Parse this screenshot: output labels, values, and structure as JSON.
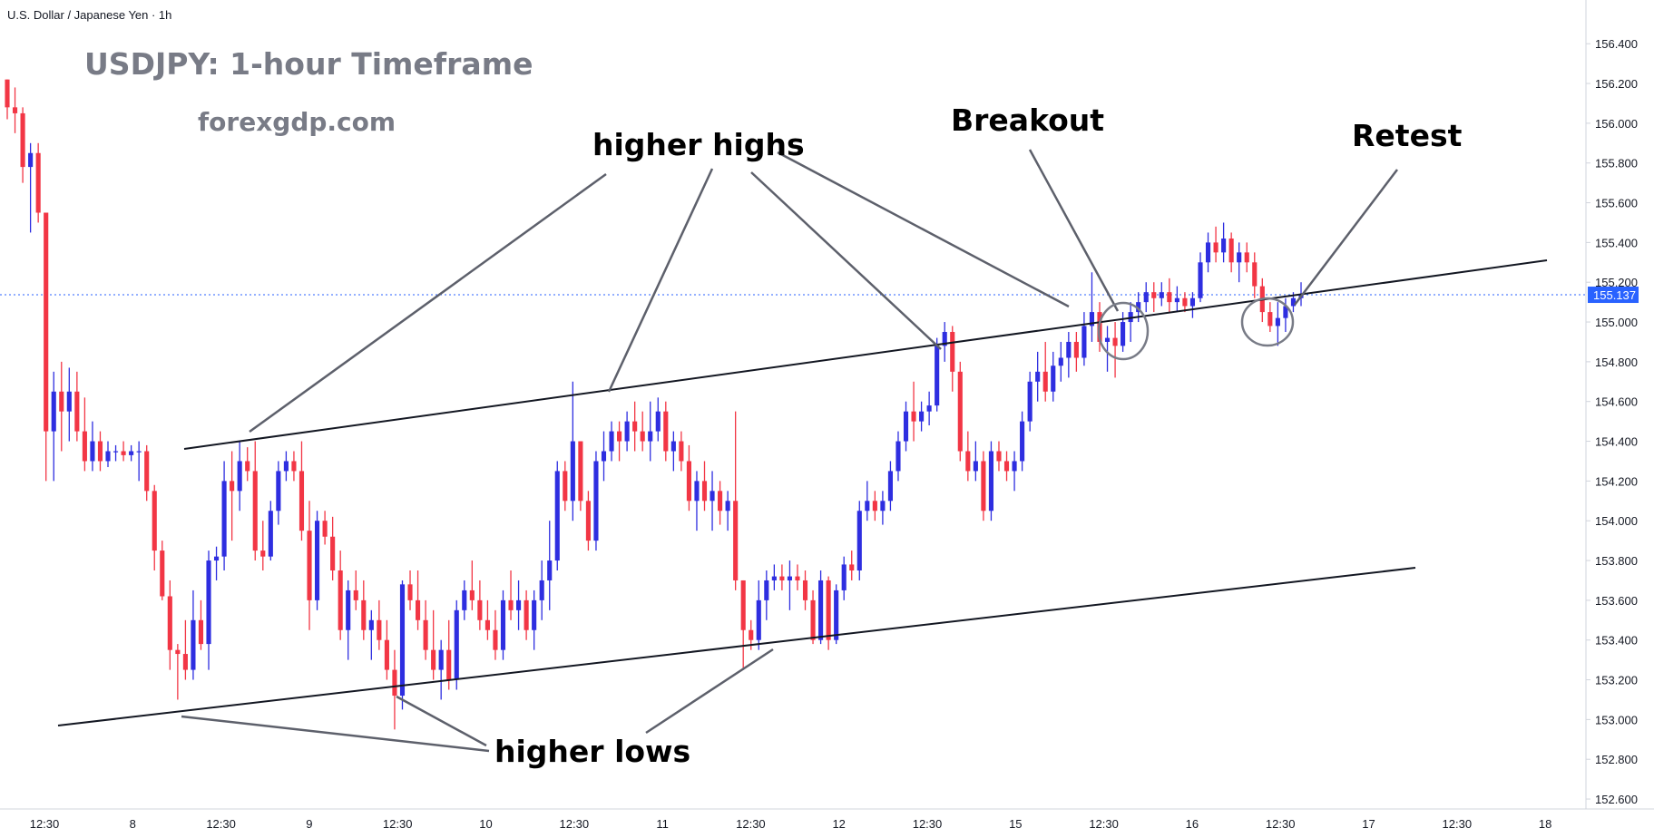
{
  "header": {
    "symbol_label": "U.S. Dollar / Japanese Yen · 1h"
  },
  "chart_data": {
    "type": "candlestick",
    "title": "USDJPY: 1-hour Timeframe",
    "watermark": "forexgdp.com",
    "y_axis": {
      "ticks": [
        "156.400",
        "156.200",
        "156.000",
        "155.800",
        "155.600",
        "155.400",
        "155.200",
        "155.000",
        "154.800",
        "154.600",
        "154.400",
        "154.200",
        "154.000",
        "153.800",
        "153.600",
        "153.400",
        "153.200",
        "153.000",
        "152.800",
        "152.600"
      ],
      "range": [
        152.55,
        156.62
      ]
    },
    "x_axis": {
      "ticks": [
        "12:30",
        "8",
        "12:30",
        "9",
        "12:30",
        "10",
        "12:30",
        "11",
        "12:30",
        "12",
        "12:30",
        "15",
        "12:30",
        "16",
        "12:30",
        "17",
        "12:30",
        "18"
      ]
    },
    "last_price": "155.137",
    "last_price_value": 155.137,
    "colors": {
      "up": "#2e2ee0",
      "down": "#f23645",
      "price_line": "#2962ff",
      "trendline": "#131722",
      "annotation_line": "#5d606b",
      "circle": "#787b86"
    },
    "ohlc": [
      [
        156.22,
        156.22,
        156.02,
        156.08
      ],
      [
        156.08,
        156.18,
        155.95,
        156.05
      ],
      [
        156.05,
        156.08,
        155.7,
        155.78
      ],
      [
        155.78,
        155.9,
        155.45,
        155.85
      ],
      [
        155.85,
        155.9,
        155.5,
        155.55
      ],
      [
        155.55,
        155.55,
        154.2,
        154.45
      ],
      [
        154.45,
        154.75,
        154.2,
        154.65
      ],
      [
        154.65,
        154.8,
        154.35,
        154.55
      ],
      [
        154.55,
        154.77,
        154.4,
        154.65
      ],
      [
        154.65,
        154.75,
        154.4,
        154.45
      ],
      [
        154.45,
        154.62,
        154.25,
        154.3
      ],
      [
        154.3,
        154.5,
        154.25,
        154.4
      ],
      [
        154.4,
        154.45,
        154.25,
        154.3
      ],
      [
        154.3,
        154.4,
        154.27,
        154.35
      ],
      [
        154.35,
        154.38,
        154.3,
        154.35
      ],
      [
        154.35,
        154.4,
        154.3,
        154.33
      ],
      [
        154.33,
        154.38,
        154.3,
        154.35
      ],
      [
        154.35,
        154.4,
        154.2,
        154.35
      ],
      [
        154.35,
        154.38,
        154.1,
        154.15
      ],
      [
        154.15,
        154.18,
        153.75,
        153.85
      ],
      [
        153.85,
        153.9,
        153.6,
        153.62
      ],
      [
        153.62,
        153.7,
        153.25,
        153.35
      ],
      [
        153.35,
        153.38,
        153.1,
        153.33
      ],
      [
        153.33,
        153.5,
        153.2,
        153.25
      ],
      [
        153.25,
        153.65,
        153.2,
        153.5
      ],
      [
        153.5,
        153.6,
        153.35,
        153.38
      ],
      [
        153.38,
        153.85,
        153.25,
        153.8
      ],
      [
        153.8,
        153.87,
        153.7,
        153.82
      ],
      [
        153.82,
        154.3,
        153.75,
        154.2
      ],
      [
        154.2,
        154.35,
        153.9,
        154.15
      ],
      [
        154.15,
        154.4,
        154.05,
        154.3
      ],
      [
        154.3,
        154.37,
        154.2,
        154.25
      ],
      [
        154.25,
        154.4,
        153.8,
        153.85
      ],
      [
        153.85,
        154.0,
        153.75,
        153.82
      ],
      [
        153.82,
        154.1,
        153.8,
        154.05
      ],
      [
        154.05,
        154.3,
        153.98,
        154.25
      ],
      [
        154.25,
        154.35,
        154.2,
        154.3
      ],
      [
        154.3,
        154.35,
        154.2,
        154.25
      ],
      [
        154.25,
        154.4,
        153.9,
        153.95
      ],
      [
        153.95,
        154.1,
        153.45,
        153.6
      ],
      [
        153.6,
        154.05,
        153.55,
        154.0
      ],
      [
        154.0,
        154.05,
        153.88,
        153.92
      ],
      [
        153.92,
        154.02,
        153.7,
        153.75
      ],
      [
        153.75,
        153.85,
        153.4,
        153.45
      ],
      [
        153.45,
        153.7,
        153.3,
        153.65
      ],
      [
        153.65,
        153.75,
        153.55,
        153.6
      ],
      [
        153.6,
        153.7,
        153.4,
        153.45
      ],
      [
        153.45,
        153.55,
        153.3,
        153.5
      ],
      [
        153.5,
        153.6,
        153.35,
        153.4
      ],
      [
        153.4,
        153.5,
        153.2,
        153.25
      ],
      [
        153.25,
        153.35,
        152.95,
        153.12
      ],
      [
        153.12,
        153.7,
        153.05,
        153.68
      ],
      [
        153.68,
        153.75,
        153.55,
        153.6
      ],
      [
        153.6,
        153.75,
        153.45,
        153.5
      ],
      [
        153.5,
        153.6,
        153.3,
        153.35
      ],
      [
        153.35,
        153.55,
        153.2,
        153.25
      ],
      [
        153.25,
        153.4,
        153.1,
        153.35
      ],
      [
        153.35,
        153.5,
        153.15,
        153.2
      ],
      [
        153.2,
        153.6,
        153.15,
        153.55
      ],
      [
        153.55,
        153.7,
        153.5,
        153.65
      ],
      [
        153.65,
        153.8,
        153.55,
        153.6
      ],
      [
        153.6,
        153.7,
        153.45,
        153.5
      ],
      [
        153.5,
        153.6,
        153.4,
        153.45
      ],
      [
        153.45,
        153.55,
        153.3,
        153.35
      ],
      [
        153.35,
        153.65,
        153.3,
        153.6
      ],
      [
        153.6,
        153.75,
        153.5,
        153.55
      ],
      [
        153.55,
        153.7,
        153.45,
        153.6
      ],
      [
        153.6,
        153.65,
        153.4,
        153.45
      ],
      [
        153.45,
        153.65,
        153.35,
        153.6
      ],
      [
        153.6,
        153.8,
        153.5,
        153.7
      ],
      [
        153.7,
        154.0,
        153.55,
        153.8
      ],
      [
        153.8,
        154.3,
        153.75,
        154.25
      ],
      [
        154.25,
        154.3,
        154.05,
        154.1
      ],
      [
        154.1,
        154.7,
        154.0,
        154.4
      ],
      [
        154.4,
        154.4,
        154.05,
        154.1
      ],
      [
        154.1,
        154.15,
        153.85,
        153.9
      ],
      [
        153.9,
        154.35,
        153.85,
        154.3
      ],
      [
        154.3,
        154.45,
        154.2,
        154.35
      ],
      [
        154.35,
        154.5,
        154.3,
        154.45
      ],
      [
        154.45,
        154.5,
        154.3,
        154.4
      ],
      [
        154.4,
        154.55,
        154.35,
        154.5
      ],
      [
        154.5,
        154.6,
        154.35,
        154.45
      ],
      [
        154.45,
        154.55,
        154.35,
        154.4
      ],
      [
        154.4,
        154.6,
        154.3,
        154.45
      ],
      [
        154.45,
        154.62,
        154.4,
        154.55
      ],
      [
        154.55,
        154.6,
        154.3,
        154.35
      ],
      [
        154.35,
        154.45,
        154.25,
        154.4
      ],
      [
        154.4,
        154.45,
        154.25,
        154.3
      ],
      [
        154.3,
        154.38,
        154.05,
        154.1
      ],
      [
        154.1,
        154.25,
        153.95,
        154.2
      ],
      [
        154.2,
        154.3,
        154.05,
        154.1
      ],
      [
        154.1,
        154.25,
        153.95,
        154.15
      ],
      [
        154.15,
        154.2,
        153.98,
        154.05
      ],
      [
        154.05,
        154.15,
        153.95,
        154.1
      ],
      [
        154.1,
        154.55,
        153.65,
        153.7
      ],
      [
        153.7,
        153.7,
        153.25,
        153.45
      ],
      [
        153.45,
        153.5,
        153.35,
        153.4
      ],
      [
        153.4,
        153.7,
        153.35,
        153.6
      ],
      [
        153.6,
        153.75,
        153.5,
        153.7
      ],
      [
        153.7,
        153.78,
        153.65,
        153.72
      ],
      [
        153.72,
        153.78,
        153.65,
        153.7
      ],
      [
        153.7,
        153.8,
        153.55,
        153.72
      ],
      [
        153.72,
        153.78,
        153.65,
        153.7
      ],
      [
        153.7,
        153.75,
        153.55,
        153.6
      ],
      [
        153.6,
        153.65,
        153.38,
        153.4
      ],
      [
        153.4,
        153.75,
        153.38,
        153.7
      ],
      [
        153.7,
        153.72,
        153.35,
        153.4
      ],
      [
        153.4,
        153.68,
        153.38,
        153.65
      ],
      [
        153.65,
        153.82,
        153.6,
        153.78
      ],
      [
        153.78,
        153.85,
        153.7,
        153.75
      ],
      [
        153.75,
        154.1,
        153.7,
        154.05
      ],
      [
        154.05,
        154.2,
        154.0,
        154.1
      ],
      [
        154.1,
        154.15,
        154.0,
        154.05
      ],
      [
        154.05,
        154.15,
        153.98,
        154.1
      ],
      [
        154.1,
        154.3,
        154.05,
        154.25
      ],
      [
        154.25,
        154.45,
        154.2,
        154.4
      ],
      [
        154.4,
        154.6,
        154.35,
        154.55
      ],
      [
        154.55,
        154.7,
        154.4,
        154.5
      ],
      [
        154.5,
        154.6,
        154.45,
        154.55
      ],
      [
        154.55,
        154.65,
        154.48,
        154.58
      ],
      [
        154.58,
        154.92,
        154.55,
        154.88
      ],
      [
        154.88,
        155.0,
        154.8,
        154.95
      ],
      [
        154.95,
        154.98,
        154.65,
        154.75
      ],
      [
        154.75,
        154.8,
        154.3,
        154.35
      ],
      [
        154.35,
        154.45,
        154.2,
        154.25
      ],
      [
        154.25,
        154.4,
        154.2,
        154.3
      ],
      [
        154.3,
        154.35,
        154.0,
        154.05
      ],
      [
        154.05,
        154.4,
        154.0,
        154.35
      ],
      [
        154.35,
        154.4,
        154.25,
        154.3
      ],
      [
        154.3,
        154.35,
        154.2,
        154.25
      ],
      [
        154.25,
        154.35,
        154.15,
        154.3
      ],
      [
        154.3,
        154.55,
        154.25,
        154.5
      ],
      [
        154.5,
        154.75,
        154.45,
        154.7
      ],
      [
        154.7,
        154.85,
        154.6,
        154.75
      ],
      [
        154.75,
        154.9,
        154.6,
        154.65
      ],
      [
        154.65,
        154.85,
        154.6,
        154.78
      ],
      [
        154.78,
        154.9,
        154.7,
        154.82
      ],
      [
        154.82,
        154.95,
        154.72,
        154.9
      ],
      [
        154.9,
        154.95,
        154.75,
        154.82
      ],
      [
        154.82,
        155.05,
        154.78,
        154.98
      ],
      [
        154.98,
        155.25,
        154.9,
        155.05
      ],
      [
        155.05,
        155.1,
        154.85,
        154.9
      ],
      [
        154.9,
        154.98,
        154.75,
        154.92
      ],
      [
        154.92,
        155.0,
        154.72,
        154.88
      ],
      [
        154.88,
        155.05,
        154.85,
        155.0
      ],
      [
        155.0,
        155.1,
        154.9,
        155.05
      ],
      [
        155.05,
        155.15,
        155.0,
        155.1
      ],
      [
        155.1,
        155.2,
        155.05,
        155.15
      ],
      [
        155.15,
        155.2,
        155.05,
        155.12
      ],
      [
        155.12,
        155.2,
        155.08,
        155.15
      ],
      [
        155.15,
        155.22,
        155.05,
        155.1
      ],
      [
        155.1,
        155.18,
        155.05,
        155.12
      ],
      [
        155.12,
        155.15,
        155.05,
        155.08
      ],
      [
        155.08,
        155.15,
        155.02,
        155.12
      ],
      [
        155.12,
        155.35,
        155.1,
        155.3
      ],
      [
        155.3,
        155.45,
        155.25,
        155.4
      ],
      [
        155.4,
        155.48,
        155.3,
        155.35
      ],
      [
        155.35,
        155.5,
        155.3,
        155.42
      ],
      [
        155.42,
        155.45,
        155.25,
        155.3
      ],
      [
        155.3,
        155.4,
        155.2,
        155.35
      ],
      [
        155.35,
        155.4,
        155.25,
        155.3
      ],
      [
        155.3,
        155.35,
        155.12,
        155.18
      ],
      [
        155.18,
        155.22,
        155.0,
        155.05
      ],
      [
        155.05,
        155.1,
        154.95,
        154.98
      ],
      [
        154.98,
        155.1,
        154.88,
        155.02
      ],
      [
        155.02,
        155.12,
        154.95,
        155.08
      ],
      [
        155.08,
        155.15,
        155.05,
        155.12
      ],
      [
        155.12,
        155.2,
        155.08,
        155.137
      ]
    ],
    "annotations": [
      "higher highs",
      "higher lows",
      "Breakout",
      "Retest"
    ]
  }
}
